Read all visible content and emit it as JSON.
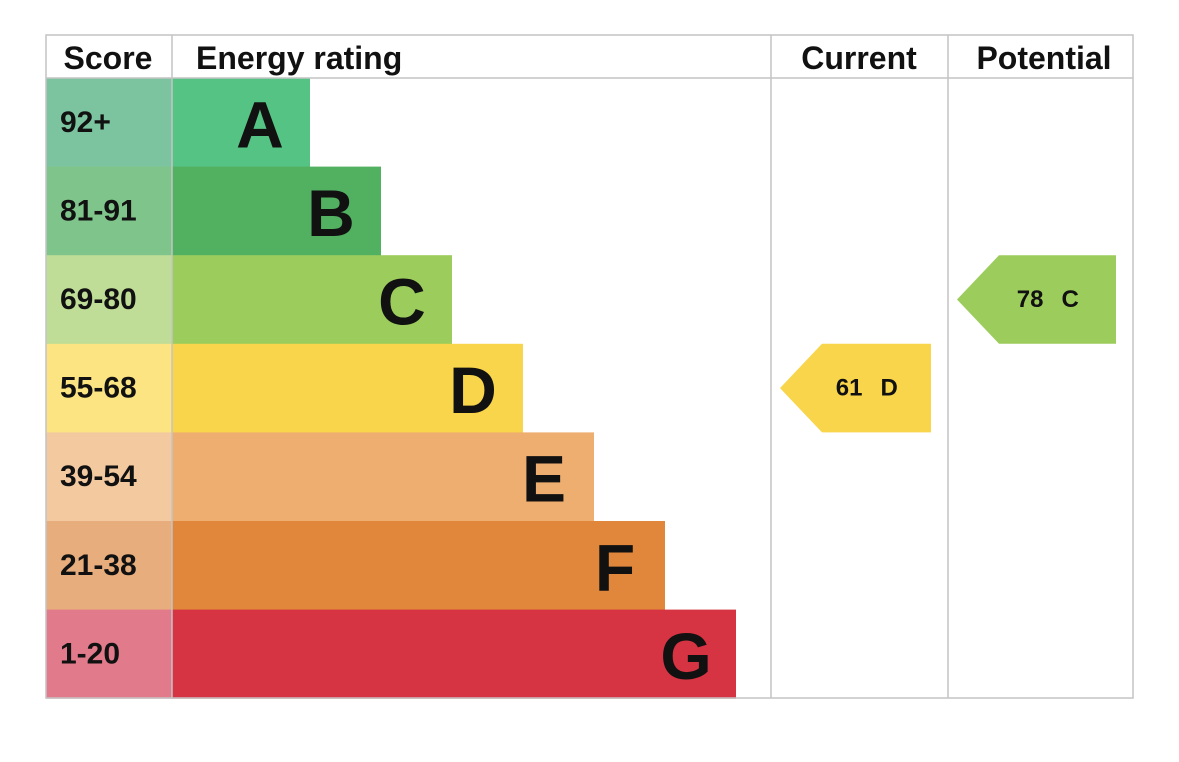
{
  "chart_data": {
    "type": "bar",
    "headers": {
      "score": "Score",
      "rating": "Energy rating",
      "current": "Current",
      "potential": "Potential"
    },
    "bands": [
      {
        "score": "92+",
        "letter": "A",
        "level": 1,
        "color": "#55c383",
        "score_color": "#7cc4a0"
      },
      {
        "score": "81-91",
        "letter": "B",
        "level": 2,
        "color": "#52b061",
        "score_color": "#7fc48b"
      },
      {
        "score": "69-80",
        "letter": "C",
        "level": 3,
        "color": "#9ccc5c",
        "score_color": "#bfdd96"
      },
      {
        "score": "55-68",
        "letter": "D",
        "level": 4,
        "color": "#f8d54a",
        "score_color": "#fbe481"
      },
      {
        "score": "39-54",
        "letter": "E",
        "level": 5,
        "color": "#eeae70",
        "score_color": "#f3c9a0"
      },
      {
        "score": "21-38",
        "letter": "F",
        "level": 6,
        "color": "#e0873c",
        "score_color": "#e8ad7d"
      },
      {
        "score": "1-20",
        "letter": "G",
        "level": 7,
        "color": "#d63443",
        "score_color": "#e17a8a"
      }
    ],
    "current": {
      "value": "61",
      "letter": "D",
      "color": "#f8d54a"
    },
    "potential": {
      "value": "78",
      "letter": "C",
      "color": "#9ccc5c"
    }
  }
}
